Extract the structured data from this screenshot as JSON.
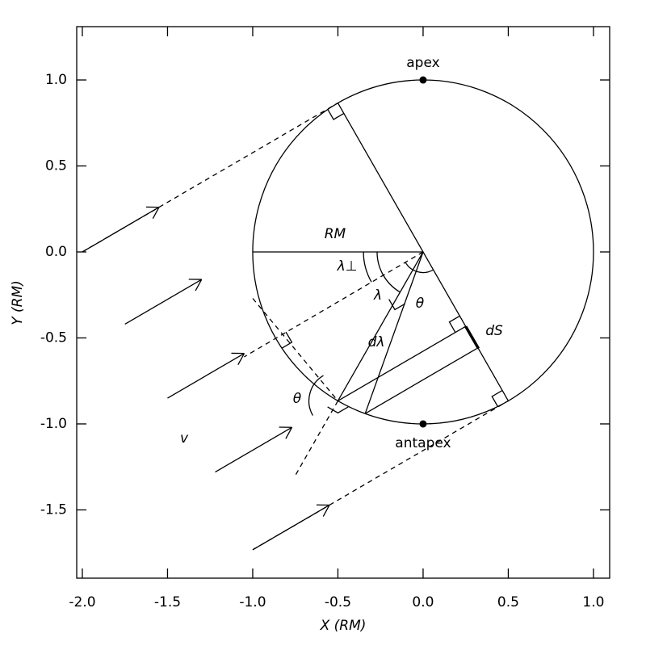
{
  "chart_data": {
    "type": "diagram",
    "x_label": "X (RM)",
    "y_label": "Y (RM)",
    "xlim": [
      -2.033,
      1.095
    ],
    "ylim": [
      -1.897,
      1.31
    ],
    "xticks": [
      {
        "value": -2,
        "label": "-2.0"
      },
      -1.5,
      {
        "value": -1,
        "label": "-1.0"
      },
      -0.5,
      {
        "value": 0,
        "label": "0.0"
      },
      0.5,
      {
        "value": 1,
        "label": "1.0"
      }
    ],
    "yticks": [
      -1.5,
      {
        "value": -1,
        "label": "-1.0"
      },
      -0.5,
      {
        "value": 0,
        "label": "0.0"
      },
      0.5,
      {
        "value": 1,
        "label": "1.0"
      }
    ],
    "radius": 1,
    "points": [
      {
        "name": "apex",
        "x": 0,
        "y": 1
      },
      {
        "name": "antapex",
        "x": 0,
        "y": -1
      }
    ],
    "annotations": [
      "RM",
      "λ⊥",
      "λ",
      "θ",
      "dλ",
      "dS",
      "θ",
      "v"
    ]
  }
}
